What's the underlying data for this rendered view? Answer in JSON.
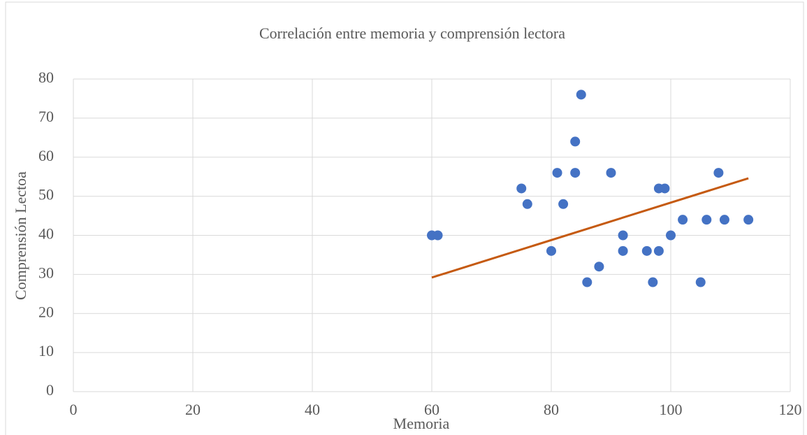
{
  "chart_data": {
    "type": "scatter",
    "title": "Correlación entre memoria y comprensión lectora",
    "x_label": "Memoria",
    "y_label": "Comprensión Lectoa",
    "series": [
      {
        "color": "#4472c4",
        "x": [
          60,
          61,
          75,
          76,
          80,
          81,
          82,
          84,
          84,
          85,
          86,
          88,
          90,
          92,
          92,
          96,
          97,
          98,
          98,
          99,
          100,
          102,
          105,
          106,
          108,
          109,
          113
        ],
        "values": [
          40,
          40,
          52,
          48,
          36,
          56,
          48,
          64,
          56,
          76,
          28,
          32,
          56,
          40,
          36,
          36,
          28,
          52,
          36,
          52,
          40,
          44,
          28,
          44,
          56,
          44,
          44
        ]
      }
    ],
    "trendline": {
      "color": "#c55a11",
      "x": [
        60,
        113
      ],
      "values": [
        29.2,
        54.6
      ]
    },
    "xlim": [
      0,
      120
    ],
    "xticks": [
      0,
      20,
      40,
      60,
      80,
      100,
      120
    ],
    "ylim": [
      0,
      80
    ],
    "yticks": [
      0,
      10,
      20,
      30,
      40,
      50,
      60,
      70,
      80
    ],
    "grid": true
  }
}
